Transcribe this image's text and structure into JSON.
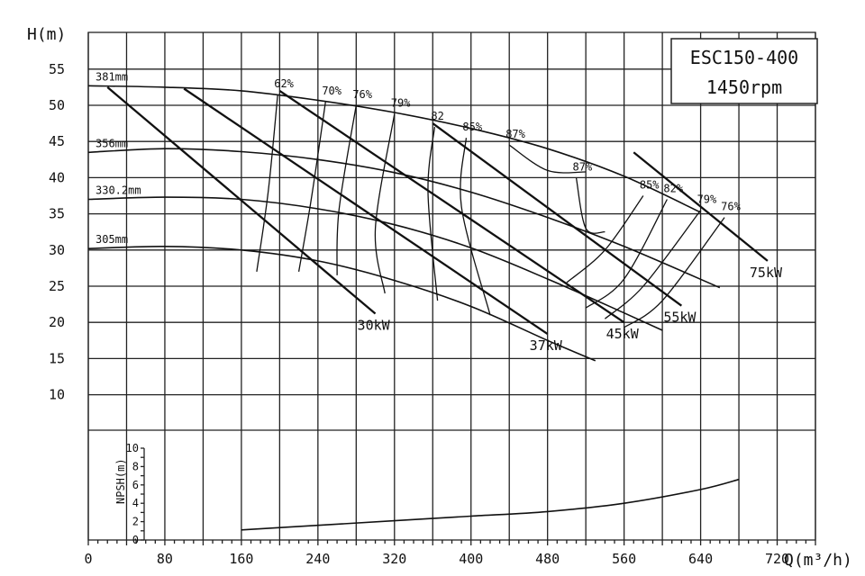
{
  "chart_data": {
    "type": "line",
    "title": "ESC150-400",
    "subtitle": "1450rpm",
    "xlabel": "Q(m³/h)",
    "ylabel": "H(m)",
    "npsh_label": "NPSH(m)",
    "xlim": [
      0,
      760
    ],
    "ylim": [
      10,
      58
    ],
    "x_ticks": [
      0,
      80,
      160,
      240,
      320,
      400,
      480,
      560,
      640,
      720
    ],
    "y_ticks": [
      10,
      15,
      20,
      25,
      30,
      35,
      40,
      45,
      50,
      55
    ],
    "npsh_ticks": [
      0,
      2,
      4,
      6,
      8,
      10
    ],
    "npsh_ylim": [
      0,
      10
    ],
    "grid": true,
    "head_curves": [
      {
        "name": "381mm",
        "x": [
          0,
          80,
          160,
          240,
          320,
          400,
          480,
          560,
          640
        ],
        "y": [
          52.7,
          52.5,
          52.0,
          50.7,
          49.0,
          46.8,
          44.0,
          40.2,
          35.2
        ]
      },
      {
        "name": "356mm",
        "x": [
          0,
          80,
          160,
          240,
          320,
          400,
          480,
          560,
          660
        ],
        "y": [
          43.5,
          44.0,
          43.6,
          42.5,
          40.7,
          38.0,
          34.5,
          30.5,
          24.8
        ]
      },
      {
        "name": "330.2mm",
        "x": [
          0,
          80,
          160,
          240,
          320,
          400,
          480,
          560,
          600
        ],
        "y": [
          37.0,
          37.3,
          37.0,
          35.7,
          33.5,
          30.3,
          26.0,
          21.3,
          18.9
        ]
      },
      {
        "name": "305mm",
        "x": [
          0,
          80,
          160,
          240,
          320,
          400,
          480,
          530
        ],
        "y": [
          30.2,
          30.5,
          30.0,
          28.5,
          25.8,
          22.2,
          17.5,
          14.7
        ]
      }
    ],
    "power_lines": [
      {
        "name": "30kW",
        "x": [
          20,
          300
        ],
        "y": [
          52.5,
          21.2
        ]
      },
      {
        "name": "37kW",
        "x": [
          100,
          480
        ],
        "y": [
          52.3,
          18.4
        ]
      },
      {
        "name": "45kW",
        "x": [
          200,
          560
        ],
        "y": [
          52.0,
          20.0
        ]
      },
      {
        "name": "55kW",
        "x": [
          360,
          620
        ],
        "y": [
          47.5,
          22.3
        ]
      },
      {
        "name": "75kW",
        "x": [
          570,
          710
        ],
        "y": [
          43.5,
          28.5
        ]
      }
    ],
    "efficiency_labels": [
      {
        "label": "62%",
        "x": [
          198,
          188,
          176
        ],
        "y": [
          51.5,
          38.0,
          27.0
        ]
      },
      {
        "label": "70%",
        "x": [
          248,
          233,
          220
        ],
        "y": [
          50.5,
          37.0,
          27.0
        ]
      },
      {
        "label": "76%",
        "x": [
          280,
          262,
          260
        ],
        "y": [
          50.0,
          35.5,
          26.5
        ]
      },
      {
        "label": "79%",
        "x": [
          320,
          300,
          310
        ],
        "y": [
          48.8,
          33.0,
          24.0
        ]
      },
      {
        "label": "82",
        "x": [
          362,
          355,
          365
        ],
        "y": [
          47.0,
          38.0,
          23.0
        ]
      },
      {
        "label": "85%",
        "x": [
          395,
          390,
          420
        ],
        "y": [
          45.5,
          36.0,
          21.0
        ]
      },
      {
        "label": "87%",
        "x": [
          440,
          480,
          520
        ],
        "y": [
          44.5,
          41.0,
          40.8
        ]
      },
      {
        "label": "87%",
        "x": [
          510,
          520,
          540
        ],
        "y": [
          40.0,
          33.0,
          32.5
        ]
      },
      {
        "label": "85%",
        "x": [
          580,
          540,
          500
        ],
        "y": [
          37.5,
          30.0,
          25.5
        ]
      },
      {
        "label": "82%",
        "x": [
          605,
          560,
          520
        ],
        "y": [
          37.0,
          26.0,
          22.0
        ]
      },
      {
        "label": "79%",
        "x": [
          640,
          580,
          540
        ],
        "y": [
          35.5,
          25.0,
          20.5
        ]
      },
      {
        "label": "76%",
        "x": [
          665,
          600,
          560
        ],
        "y": [
          34.5,
          23.0,
          19.3
        ]
      }
    ],
    "npsh_curve": {
      "x": [
        160,
        240,
        320,
        400,
        480,
        560,
        640,
        680
      ],
      "y": [
        1.1,
        1.6,
        2.1,
        2.6,
        3.1,
        4.0,
        5.5,
        6.6
      ]
    }
  }
}
